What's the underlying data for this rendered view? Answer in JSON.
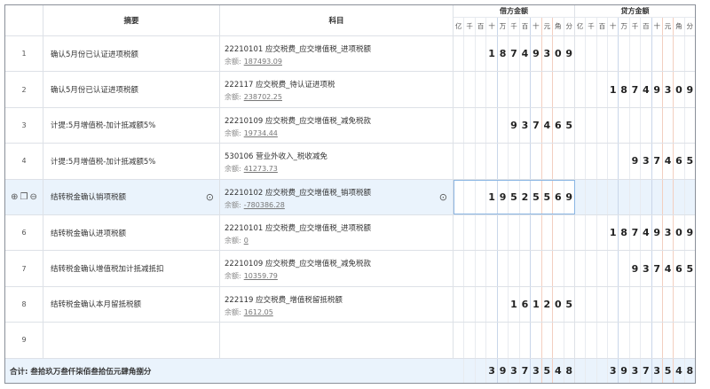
{
  "header": {
    "summary": "摘要",
    "account": "科目",
    "debit": "借方金额",
    "credit": "贷方金额",
    "units": [
      "亿",
      "千",
      "百",
      "十",
      "万",
      "千",
      "百",
      "十",
      "元",
      "角",
      "分"
    ]
  },
  "balance_label": "余额:",
  "rows": [
    {
      "num": "1",
      "summary": "确认5月份已认证进项税额",
      "account": "22210101 应交税费_应交增值税_进项税额",
      "balance": "187493.09",
      "debit": "18749309",
      "credit": ""
    },
    {
      "num": "2",
      "summary": "确认5月份已认证进项税额",
      "account": "222117 应交税费_待认证进项税",
      "balance": "238702.25",
      "debit": "",
      "credit": "18749309"
    },
    {
      "num": "3",
      "summary": "计提:5月增值税-加计抵减额5%",
      "account": "22210109 应交税费_应交增值税_减免税款",
      "balance": "19734.44",
      "debit": "937465",
      "credit": ""
    },
    {
      "num": "4",
      "summary": "计提:5月增值税-加计抵减额5%",
      "account": "530106 营业外收入_税收减免",
      "balance": "41273.73",
      "debit": "",
      "credit": "937465"
    },
    {
      "num": "5",
      "summary": "结转税金确认销项税额",
      "account": "22210102 应交税费_应交增值税_销项税额",
      "balance": "-780386.28",
      "debit": "19525569",
      "credit": "",
      "selected": true
    },
    {
      "num": "6",
      "summary": "结转税金确认进项税额",
      "account": "22210101 应交税费_应交增值税_进项税额",
      "balance": "0",
      "debit": "",
      "credit": "18749309"
    },
    {
      "num": "7",
      "summary": "结转税金确认增值税加计抵减抵扣",
      "account": "22210109 应交税费_应交增值税_减免税款",
      "balance": "10359.79",
      "debit": "",
      "credit": "937465"
    },
    {
      "num": "8",
      "summary": "结转税金确认本月留抵税额",
      "account": "222119 应交税费_增值税留抵税额",
      "balance": "1612.05",
      "debit": "161205",
      "credit": ""
    },
    {
      "num": "9",
      "summary": "",
      "account": "",
      "balance": "",
      "debit": "",
      "credit": ""
    }
  ],
  "total": {
    "label": "合计: 叁拾玖万叁仟柒佰叁拾伍元肆角捌分",
    "debit": "39373548",
    "credit": "39373548"
  },
  "icons": {
    "add": "plus-circle-icon",
    "copy": "copy-icon",
    "remove": "minus-circle-icon",
    "more": "more-icon"
  }
}
